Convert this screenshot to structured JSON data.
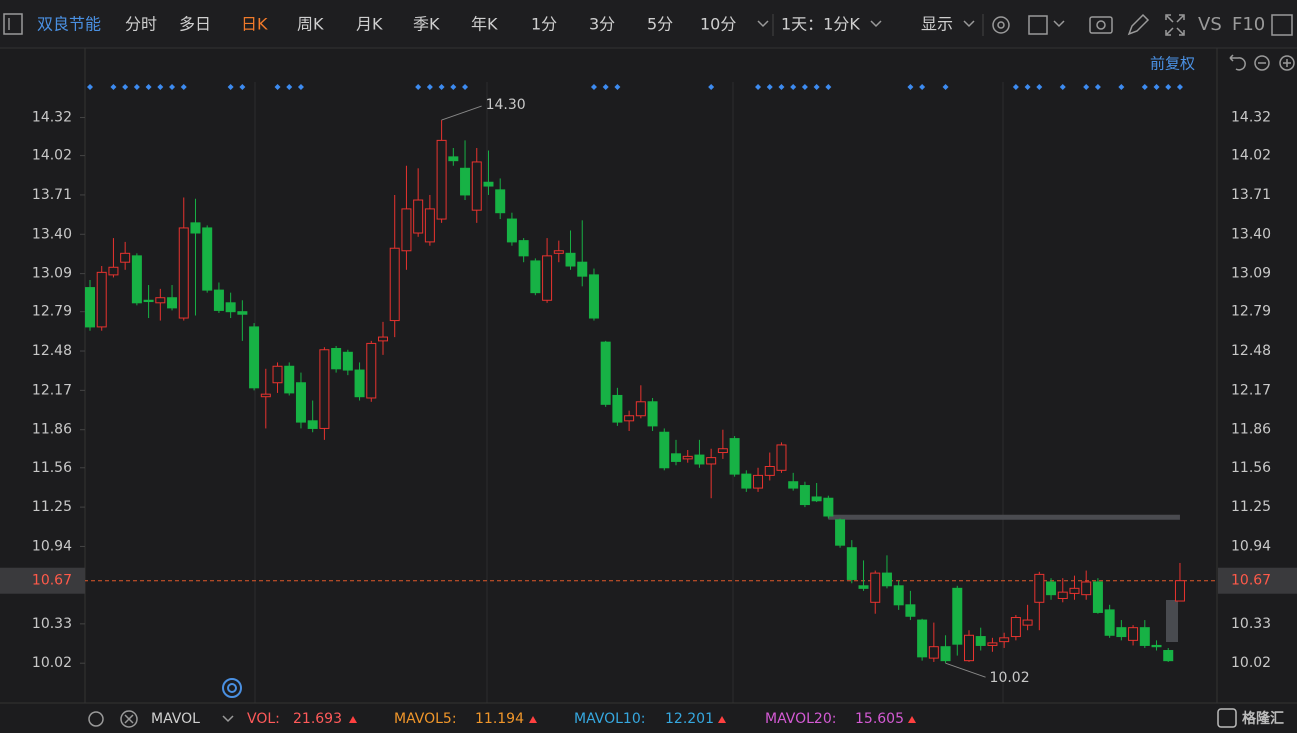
{
  "toolbar": {
    "stock_name": "双良节能",
    "tabs": [
      "分时",
      "多日",
      "日K",
      "周K",
      "月K",
      "季K",
      "年K",
      "1分",
      "3分",
      "5分",
      "10分"
    ],
    "active_tab": 2,
    "period_select": "1天：1分K",
    "display": "显示",
    "vs": "VS",
    "f10": "F10",
    "adjust": "前复权"
  },
  "chart_data": {
    "type": "candlestick",
    "open": [
      12.98,
      12.67,
      13.08,
      13.18,
      13.23,
      12.88,
      12.86,
      12.9,
      12.74,
      13.49,
      13.45,
      12.96,
      12.86,
      12.79,
      12.67,
      12.12,
      12.23,
      12.36,
      12.23,
      11.93,
      11.87,
      12.5,
      12.47,
      12.33,
      12.11,
      12.56,
      12.72,
      13.27,
      13.41,
      13.34,
      13.52,
      14.01,
      13.92,
      13.59,
      13.81,
      13.75,
      13.52,
      13.35,
      13.19,
      12.88,
      13.25,
      13.25,
      13.18,
      13.08,
      12.55,
      12.13,
      11.93,
      11.97,
      12.08,
      11.84,
      11.67,
      11.63,
      11.66,
      11.59,
      11.68,
      11.79,
      11.51,
      11.4,
      11.5,
      11.54,
      11.45,
      11.42,
      11.33,
      11.32,
      11.15,
      10.93,
      10.63,
      10.5,
      10.73,
      10.63,
      10.48,
      10.36,
      10.06,
      10.15,
      10.61,
      10.04,
      10.23,
      10.16,
      10.19,
      10.23,
      10.32,
      10.5,
      10.66,
      10.53,
      10.57,
      10.56,
      10.66,
      10.44,
      10.3,
      10.2,
      10.3,
      10.16,
      10.12,
      10.51
    ],
    "high": [
      13.04,
      13.15,
      13.37,
      13.34,
      13.25,
      13.0,
      12.97,
      13.0,
      13.69,
      13.68,
      13.47,
      13.02,
      12.94,
      12.88,
      12.7,
      12.34,
      12.39,
      12.39,
      12.31,
      12.09,
      12.51,
      12.52,
      12.49,
      12.39,
      12.56,
      12.71,
      13.71,
      13.94,
      13.92,
      13.71,
      14.3,
      14.08,
      14.14,
      14.08,
      14.06,
      13.84,
      13.57,
      13.37,
      13.21,
      13.37,
      13.35,
      13.43,
      13.51,
      13.13,
      12.56,
      12.19,
      12.01,
      12.21,
      12.11,
      11.87,
      11.78,
      11.7,
      11.78,
      11.71,
      11.86,
      11.81,
      11.54,
      11.56,
      11.68,
      11.76,
      11.52,
      11.45,
      11.44,
      11.34,
      11.16,
      10.99,
      10.83,
      10.75,
      10.87,
      10.67,
      10.59,
      10.37,
      10.34,
      10.24,
      10.63,
      10.28,
      10.3,
      10.22,
      10.26,
      10.4,
      10.48,
      10.74,
      10.69,
      10.69,
      10.71,
      10.75,
      10.69,
      10.48,
      10.36,
      10.32,
      10.36,
      10.2,
      10.14,
      10.81
    ],
    "low": [
      12.64,
      12.64,
      13.06,
      13.12,
      12.84,
      12.74,
      12.72,
      12.8,
      12.72,
      12.76,
      12.94,
      12.78,
      12.74,
      12.56,
      12.17,
      11.87,
      12.15,
      12.13,
      11.87,
      11.84,
      11.78,
      12.31,
      12.29,
      12.09,
      12.08,
      12.45,
      12.59,
      13.12,
      13.38,
      13.31,
      13.49,
      13.94,
      13.67,
      13.49,
      13.71,
      13.52,
      13.31,
      13.18,
      12.92,
      12.86,
      13.18,
      13.12,
      12.99,
      12.72,
      12.04,
      11.89,
      11.85,
      11.95,
      11.85,
      11.54,
      11.58,
      11.6,
      11.56,
      11.32,
      11.63,
      11.49,
      11.37,
      11.37,
      11.46,
      11.52,
      11.38,
      11.25,
      11.29,
      11.16,
      10.93,
      10.65,
      10.59,
      10.41,
      10.61,
      10.44,
      10.36,
      10.04,
      10.03,
      10.02,
      10.08,
      10.03,
      10.12,
      10.11,
      10.14,
      10.2,
      10.28,
      10.28,
      10.52,
      10.5,
      10.52,
      10.52,
      10.41,
      10.22,
      10.2,
      10.16,
      10.14,
      10.12,
      10.03,
      10.51
    ],
    "close": [
      12.67,
      13.1,
      13.14,
      13.25,
      12.86,
      12.87,
      12.9,
      12.82,
      13.45,
      13.41,
      12.96,
      12.8,
      12.79,
      12.77,
      12.19,
      12.14,
      12.36,
      12.15,
      11.92,
      11.87,
      12.49,
      12.34,
      12.33,
      12.12,
      12.54,
      12.59,
      13.29,
      13.6,
      13.67,
      13.6,
      14.14,
      13.98,
      13.71,
      13.97,
      13.78,
      13.57,
      13.34,
      13.23,
      12.94,
      13.23,
      13.27,
      13.15,
      13.07,
      12.74,
      12.06,
      11.92,
      11.97,
      12.08,
      11.89,
      11.56,
      11.61,
      11.65,
      11.59,
      11.64,
      11.71,
      11.51,
      11.4,
      11.5,
      11.57,
      11.74,
      11.4,
      11.27,
      11.3,
      11.18,
      10.95,
      10.68,
      10.61,
      10.73,
      10.63,
      10.48,
      10.39,
      10.07,
      10.15,
      10.04,
      10.17,
      10.24,
      10.16,
      10.18,
      10.22,
      10.38,
      10.36,
      10.72,
      10.56,
      10.58,
      10.61,
      10.66,
      10.42,
      10.24,
      10.23,
      10.3,
      10.16,
      10.15,
      10.04,
      10.67
    ],
    "up_color": "#e8332f",
    "down_color": "#17b245",
    "ylim": [
      9.73,
      14.6
    ],
    "yticks": [
      14.32,
      14.02,
      13.71,
      {
        "value": 13.4,
        "label": "13.40"
      },
      13.09,
      12.79,
      12.48,
      12.17,
      11.86,
      11.56,
      11.25,
      10.94,
      10.33,
      10.02
    ],
    "last_price": 10.67,
    "high_label": {
      "value": 14.3,
      "label": "14.30"
    },
    "low_label": 10.02,
    "reference_line": 11.17,
    "signal_markers": [
      0,
      2,
      3,
      4,
      5,
      6,
      7,
      8,
      12,
      13,
      16,
      17,
      18,
      28,
      29,
      30,
      31,
      32,
      43,
      44,
      45,
      53,
      57,
      58,
      59,
      60,
      61,
      62,
      63,
      70,
      71,
      73,
      79,
      80,
      81,
      83,
      85,
      86,
      88,
      90,
      91,
      92,
      93
    ]
  },
  "footer": {
    "indicator": "MAVOL",
    "vol_label": "VOL:",
    "vol": 21.693,
    "mavol5_label": "MAVOL5:",
    "mavol5": 11.194,
    "mavol10_label": "MAVOL10:",
    "mavol10": 12.201,
    "mavol20_label": "MAVOL20:",
    "mavol20": 15.605
  },
  "logo": "格隆汇"
}
